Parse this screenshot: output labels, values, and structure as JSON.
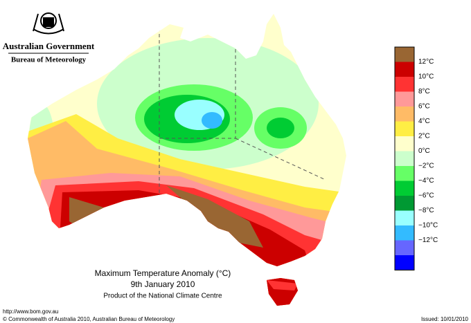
{
  "header": {
    "government": "Australian Government",
    "agency": "Bureau of Meteorology"
  },
  "map": {
    "title": "Maximum Temperature Anomaly (°C)",
    "date": "9th January 2010",
    "product": "Product of the National Climate Centre"
  },
  "legend": {
    "colors": [
      "#996633",
      "#cc0000",
      "#ff3333",
      "#ff9999",
      "#ffbb66",
      "#ffee44",
      "#ffffcc",
      "#ccffcc",
      "#66ff66",
      "#00cc33",
      "#009933",
      "#99ffff",
      "#33bbff",
      "#6666ff",
      "#0000ff"
    ],
    "labels": [
      "12°C",
      "10°C",
      "8°C",
      "6°C",
      "4°C",
      "2°C",
      "0°C",
      "−2°C",
      "−4°C",
      "−6°C",
      "−8°C",
      "−10°C",
      "−12°C"
    ]
  },
  "footer": {
    "url": "http://www.bom.gov.au",
    "copyright": "© Commonwealth of Australia 2010, Australian Bureau of Meteorology",
    "issued": "Issued: 10/01/2010"
  }
}
